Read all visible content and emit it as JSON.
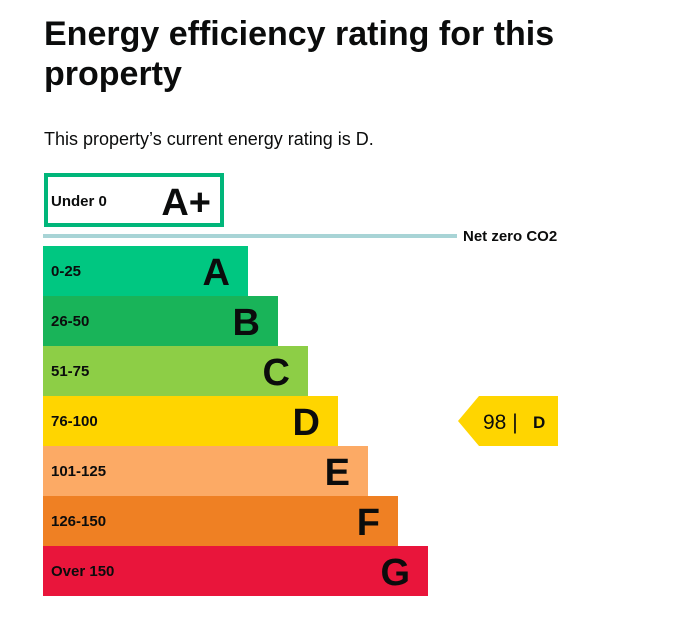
{
  "page": {
    "title": "Energy efficiency rating for this property",
    "summary": "This property’s current energy rating is D."
  },
  "colors": {
    "aplus_border": "#00b67a",
    "net_zero_line": "#a8d4d6",
    "text": "#0b0c0c"
  },
  "chart_data": {
    "type": "bar",
    "title": "",
    "bands": [
      {
        "letter": "A+",
        "range": "Under 0",
        "color": "#ffffff",
        "outlined": true
      },
      {
        "letter": "A",
        "range": "0-25",
        "color": "#00c781"
      },
      {
        "letter": "B",
        "range": "26-50",
        "color": "#19b459"
      },
      {
        "letter": "C",
        "range": "51-75",
        "color": "#8dce46"
      },
      {
        "letter": "D",
        "range": "76-100",
        "color": "#ffd500"
      },
      {
        "letter": "E",
        "range": "101-125",
        "color": "#fcaa65"
      },
      {
        "letter": "F",
        "range": "126-150",
        "color": "#ef8023"
      },
      {
        "letter": "G",
        "range": "Over 150",
        "color": "#e9153b"
      }
    ],
    "net_zero_label": "Net zero CO2",
    "current": {
      "score": 98,
      "score_text": "98 |",
      "band": "D",
      "color": "#ffd500"
    }
  }
}
